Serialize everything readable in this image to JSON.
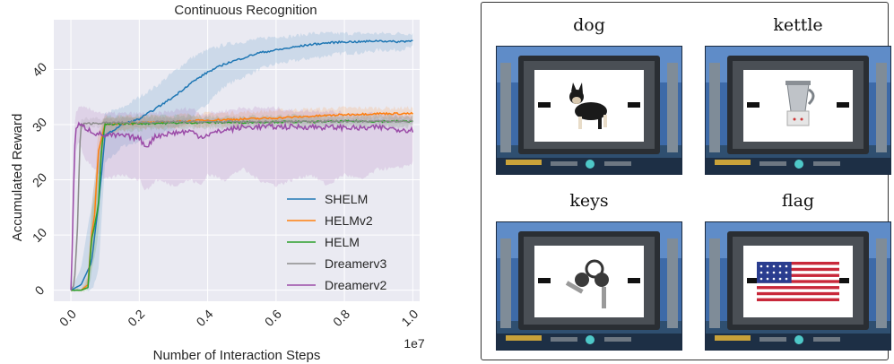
{
  "chart_data": {
    "type": "line",
    "title": "Continuous Recognition",
    "xlabel": "Number of Interaction Steps",
    "ylabel": "Accumulated Reward",
    "x_offset_label": "1e7",
    "xlim": [
      -0.05,
      1.02
    ],
    "ylim": [
      -2,
      49
    ],
    "x_ticks": [
      0.0,
      0.2,
      0.4,
      0.6,
      0.8,
      1.0
    ],
    "x_tick_labels": [
      "0.0",
      "0.2",
      "0.4",
      "0.6",
      "0.8",
      "1.0"
    ],
    "y_ticks": [
      0,
      10,
      20,
      30,
      40
    ],
    "y_tick_labels": [
      "0",
      "10",
      "20",
      "30",
      "40"
    ],
    "grid": true,
    "legend_position": "lower-right",
    "series": [
      {
        "name": "SHELM",
        "color": "#1f77b4",
        "x": [
          0.0,
          0.03,
          0.06,
          0.08,
          0.1,
          0.15,
          0.2,
          0.25,
          0.3,
          0.35,
          0.4,
          0.45,
          0.5,
          0.55,
          0.6,
          0.65,
          0.7,
          0.75,
          0.8,
          0.85,
          0.9,
          0.95,
          1.0
        ],
        "y": [
          0,
          1,
          5,
          15,
          28,
          30,
          31,
          33,
          35,
          37.5,
          39.5,
          41,
          42,
          43,
          43.5,
          44,
          44.5,
          44.8,
          45,
          45,
          45.2,
          45,
          45.2
        ],
        "band_lower": [
          0,
          0,
          0,
          3,
          23,
          26,
          27,
          28,
          29,
          31,
          34,
          37,
          38.5,
          40,
          41,
          41.5,
          42,
          42.5,
          43,
          43,
          43.5,
          43.5,
          44
        ],
        "band_upper": [
          0,
          4,
          15,
          25,
          32,
          33,
          35,
          37,
          39.5,
          42,
          43.5,
          44.5,
          45,
          45.5,
          46,
          46,
          46.5,
          46.5,
          46.5,
          46.5,
          46.5,
          46.5,
          46.5
        ]
      },
      {
        "name": "HELMv2",
        "color": "#ff7f0e",
        "x": [
          0.0,
          0.03,
          0.05,
          0.06,
          0.07,
          0.08,
          0.1,
          0.15,
          0.2,
          0.3,
          0.4,
          0.5,
          0.6,
          0.7,
          0.8,
          0.9,
          1.0
        ],
        "y": [
          0,
          0,
          1,
          10,
          14,
          25,
          30,
          30.2,
          30.3,
          30.5,
          30.8,
          31,
          31.2,
          31.5,
          31.8,
          32,
          32
        ],
        "band_lower": [
          0,
          0,
          0,
          4,
          8,
          18,
          28,
          29,
          29.3,
          29.5,
          29.8,
          30,
          30.3,
          30.5,
          30.8,
          31,
          31
        ],
        "band_upper": [
          0,
          0,
          3,
          15,
          20,
          29,
          31.5,
          31.5,
          31.5,
          31.7,
          32,
          32.2,
          32.5,
          32.8,
          33,
          33,
          33
        ]
      },
      {
        "name": "HELM",
        "color": "#2ca02c",
        "x": [
          0.0,
          0.03,
          0.05,
          0.06,
          0.07,
          0.08,
          0.09,
          0.1,
          0.15,
          0.2,
          0.3,
          0.4,
          0.5,
          0.6,
          0.7,
          0.8,
          0.9,
          1.0
        ],
        "y": [
          0,
          0,
          0.5,
          9,
          12,
          15,
          26,
          30,
          30.2,
          30.2,
          30.3,
          30.4,
          30.4,
          30.5,
          30.5,
          30.6,
          30.6,
          30.6
        ],
        "band_lower": [
          0,
          0,
          0,
          3,
          6,
          10,
          20,
          28,
          29,
          29,
          29.3,
          29.4,
          29.4,
          29.5,
          29.5,
          29.6,
          29.6,
          29.6
        ],
        "band_upper": [
          0,
          0,
          2,
          14,
          18,
          22,
          30,
          31.5,
          31.5,
          31.5,
          31.5,
          31.5,
          31.5,
          31.6,
          31.6,
          31.6,
          31.6,
          31.6
        ]
      },
      {
        "name": "Dreamerv3",
        "color": "#8c8c8c",
        "x": [
          0.0,
          0.01,
          0.02,
          0.025,
          0.03,
          0.05,
          0.1,
          0.2,
          0.3,
          0.4,
          0.5,
          0.6,
          0.7,
          0.8,
          0.9,
          1.0
        ],
        "y": [
          0,
          1,
          12,
          25,
          30,
          30.2,
          30.3,
          30.4,
          30.5,
          30.5,
          30.5,
          30.5,
          30.6,
          30.6,
          30.6,
          30.6
        ],
        "band_lower": [
          0,
          0,
          8,
          20,
          29,
          29.5,
          29.6,
          29.7,
          29.8,
          29.8,
          29.8,
          29.8,
          29.9,
          29.9,
          29.9,
          29.9
        ],
        "band_upper": [
          0,
          3,
          16,
          28,
          31,
          31,
          31,
          31.1,
          31.2,
          31.2,
          31.2,
          31.2,
          31.3,
          31.3,
          31.3,
          31.3
        ]
      },
      {
        "name": "Dreamerv2",
        "color": "#9b4ca8",
        "x": [
          0.0,
          0.005,
          0.01,
          0.015,
          0.02,
          0.04,
          0.07,
          0.1,
          0.15,
          0.2,
          0.22,
          0.25,
          0.3,
          0.35,
          0.38,
          0.4,
          0.45,
          0.5,
          0.55,
          0.6,
          0.65,
          0.7,
          0.75,
          0.8,
          0.85,
          0.9,
          0.95,
          1.0
        ],
        "y": [
          0,
          10,
          25,
          29,
          30,
          29.5,
          28.5,
          28,
          28,
          27.5,
          26,
          28,
          28.5,
          28.8,
          27.8,
          28.2,
          29,
          29.5,
          29.6,
          29.6,
          29.6,
          29.6,
          29.5,
          29.5,
          29.3,
          29.5,
          29.2,
          29
        ],
        "band_lower": [
          0,
          5,
          18,
          25,
          27,
          24,
          22,
          20,
          21,
          20,
          18,
          20,
          19,
          20,
          19,
          21,
          20,
          22,
          20,
          19,
          20,
          21,
          19,
          21,
          20,
          22,
          22,
          23
        ],
        "band_upper": [
          0,
          15,
          30,
          32,
          33,
          33,
          32.5,
          32,
          32,
          32,
          32,
          32,
          32.5,
          33,
          32,
          32,
          32.5,
          33,
          33,
          33,
          32.5,
          32.5,
          32.5,
          32,
          32,
          32,
          32,
          31.5
        ]
      }
    ]
  },
  "examples": [
    {
      "label": "dog",
      "object": "dog"
    },
    {
      "label": "kettle",
      "object": "kettle"
    },
    {
      "label": "keys",
      "object": "keys"
    },
    {
      "label": "flag",
      "object": "flag"
    }
  ]
}
